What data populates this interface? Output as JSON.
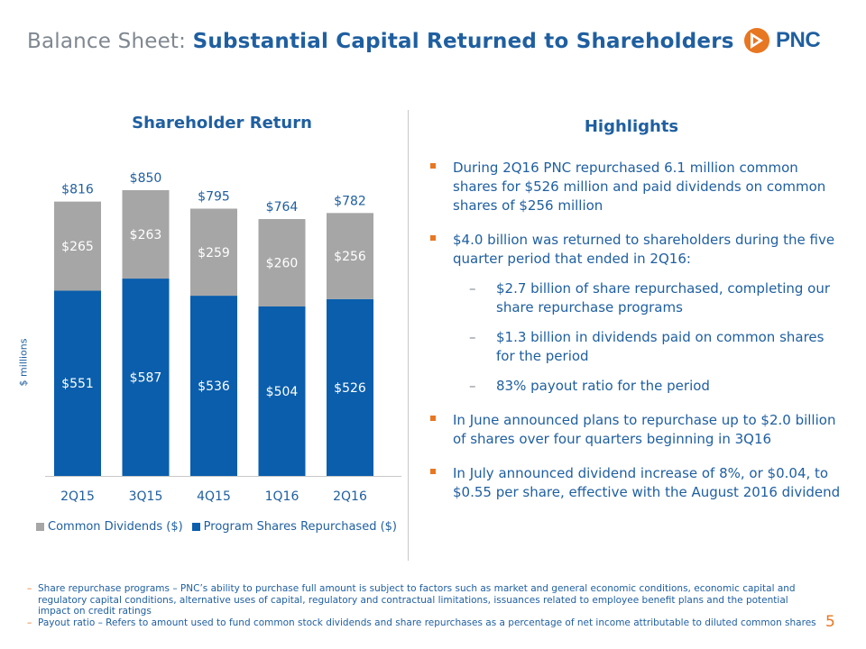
{
  "header": {
    "title_prefix": "Balance Sheet:",
    "title_main": "Substantial Capital Returned to Shareholders",
    "logo_text": "PNC"
  },
  "colors": {
    "brand_blue": "#1f5fa0",
    "bar_blue": "#0a5eac",
    "bar_gray": "#a6a6a6",
    "accent_orange": "#e87722"
  },
  "chart_data": {
    "type": "bar",
    "stacked": true,
    "title": "Shareholder Return",
    "ylabel": "$ millions",
    "xlabel": "",
    "categories": [
      "2Q15",
      "3Q15",
      "4Q15",
      "1Q16",
      "2Q16"
    ],
    "ylim": [
      0,
      900
    ],
    "series": [
      {
        "name": "Program Shares Repurchased ($)",
        "values": [
          551,
          587,
          536,
          504,
          526
        ],
        "labels": [
          "$551",
          "$587",
          "$536",
          "$504",
          "$526"
        ]
      },
      {
        "name": "Common Dividends ($)",
        "values": [
          265,
          263,
          259,
          260,
          256
        ],
        "labels": [
          "$265",
          "$263",
          "$259",
          "$260",
          "$256"
        ]
      }
    ],
    "totals": [
      816,
      850,
      795,
      764,
      782
    ],
    "total_labels": [
      "$816",
      "$850",
      "$795",
      "$764",
      "$782"
    ],
    "legend": [
      "Common Dividends ($)",
      "Program Shares Repurchased ($)"
    ],
    "legend_position": "bottom"
  },
  "highlights": {
    "title": "Highlights",
    "b1": "During 2Q16 PNC repurchased 6.1 million common shares for $526 million and paid dividends on common shares of $256 million",
    "b2": "$4.0 billion was returned to shareholders during the five quarter period that ended in 2Q16:",
    "b2_subs": [
      "$2.7 billion of share repurchased, completing our share repurchase programs",
      "$1.3 billion in dividends paid on common shares for the period",
      "83% payout ratio for the period"
    ],
    "b3": "In June announced plans to repurchase up to $2.0 billion of shares over four quarters beginning in 3Q16",
    "b4": "In July announced dividend increase of 8%, or $0.04, to $0.55 per share, effective with the August 2016 dividend"
  },
  "footnotes": {
    "f1": "Share repurchase programs – PNC’s ability to purchase full amount is subject to factors such as market and general economic conditions, economic capital and regulatory capital conditions, alternative uses of capital, regulatory and contractual limitations, issuances related to employee benefit plans and the potential impact on credit ratings",
    "f2": "Payout ratio – Refers to amount used to fund common stock dividends and share repurchases as a percentage of net income attributable to diluted common shares",
    "dash": "–"
  },
  "page_number": "5",
  "misc": {
    "sub_dash": "–"
  }
}
